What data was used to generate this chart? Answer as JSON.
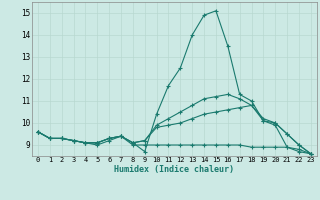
{
  "xlabel": "Humidex (Indice chaleur)",
  "background_color": "#cce9e4",
  "line_color": "#1a7a6e",
  "grid_color": "#b8d8d0",
  "xlim": [
    -0.5,
    23.5
  ],
  "ylim": [
    8.5,
    15.5
  ],
  "yticks": [
    9,
    10,
    11,
    12,
    13,
    14,
    15
  ],
  "xticks": [
    0,
    1,
    2,
    3,
    4,
    5,
    6,
    7,
    8,
    9,
    10,
    11,
    12,
    13,
    14,
    15,
    16,
    17,
    18,
    19,
    20,
    21,
    22,
    23
  ],
  "lines": [
    {
      "x": [
        0,
        1,
        2,
        3,
        4,
        5,
        6,
        7,
        8,
        9,
        10,
        11,
        12,
        13,
        14,
        15,
        16,
        17,
        18,
        19,
        20,
        21,
        22,
        23
      ],
      "y": [
        9.6,
        9.3,
        9.3,
        9.2,
        9.1,
        9.1,
        9.3,
        9.4,
        9.1,
        8.7,
        10.4,
        11.7,
        12.5,
        14.0,
        14.9,
        15.1,
        13.5,
        11.3,
        11.0,
        10.1,
        9.9,
        8.9,
        8.7,
        8.6
      ]
    },
    {
      "x": [
        0,
        1,
        2,
        3,
        4,
        5,
        6,
        7,
        8,
        9,
        10,
        11,
        12,
        13,
        14,
        15,
        16,
        17,
        18,
        19,
        20,
        21,
        22,
        23
      ],
      "y": [
        9.6,
        9.3,
        9.3,
        9.2,
        9.1,
        9.1,
        9.3,
        9.4,
        9.1,
        9.2,
        9.9,
        10.2,
        10.5,
        10.8,
        11.1,
        11.2,
        11.3,
        11.1,
        10.8,
        10.2,
        10.0,
        9.5,
        9.0,
        8.6
      ]
    },
    {
      "x": [
        0,
        1,
        2,
        3,
        4,
        5,
        6,
        7,
        8,
        9,
        10,
        11,
        12,
        13,
        14,
        15,
        16,
        17,
        18,
        19,
        20,
        21,
        22,
        23
      ],
      "y": [
        9.6,
        9.3,
        9.3,
        9.2,
        9.1,
        9.1,
        9.3,
        9.4,
        9.1,
        9.2,
        9.8,
        9.9,
        10.0,
        10.2,
        10.4,
        10.5,
        10.6,
        10.7,
        10.8,
        10.1,
        10.0,
        9.5,
        9.0,
        8.6
      ]
    },
    {
      "x": [
        0,
        1,
        2,
        3,
        4,
        5,
        6,
        7,
        8,
        9,
        10,
        11,
        12,
        13,
        14,
        15,
        16,
        17,
        18,
        19,
        20,
        21,
        22,
        23
      ],
      "y": [
        9.6,
        9.3,
        9.3,
        9.2,
        9.1,
        9.0,
        9.2,
        9.4,
        9.0,
        9.0,
        9.0,
        9.0,
        9.0,
        9.0,
        9.0,
        9.0,
        9.0,
        9.0,
        8.9,
        8.9,
        8.9,
        8.9,
        8.8,
        8.6
      ]
    }
  ]
}
